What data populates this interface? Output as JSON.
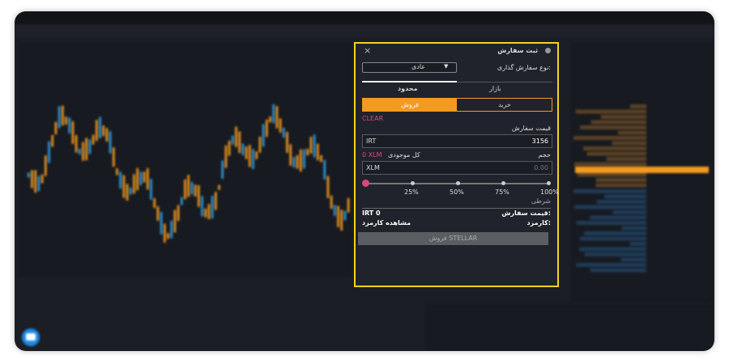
{
  "modal": {
    "title": "ثبت سفارش",
    "close": "×",
    "order_type_label": "نوع سفارش گذاری:",
    "order_type_value": "عادی",
    "tabs": [
      "بازار",
      "محدود"
    ],
    "sides": [
      "خرید",
      "فروش"
    ],
    "clear": "CLEAR",
    "price_label": "قیمت سفارش",
    "price_unit": "IRT",
    "price_value": "3156",
    "volume_label": "حجم",
    "balance_label": "کل موجودی",
    "balance_value": "0 XLM",
    "volume_unit": "XLM",
    "volume_placeholder": "0.00",
    "slider_marks": [
      "25%",
      "50%",
      "75%",
      "100%"
    ],
    "conditional": "شرطی",
    "total_label": "قیمت سفارش:",
    "total_value": "IRT 0",
    "fee_label": "کارمزد:",
    "fee_link": "مشاهده کارمزد",
    "submit": "فروش STELLAR"
  }
}
